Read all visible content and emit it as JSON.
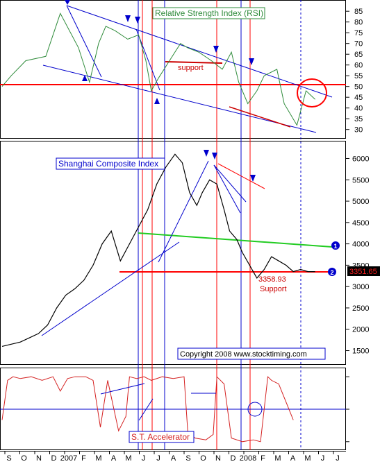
{
  "chart_data": [
    {
      "type": "line",
      "panel": "rsi",
      "title": "Relative Strength Index (RSI)",
      "y_ticks": [
        30,
        35,
        40,
        45,
        50,
        55,
        60,
        65,
        70,
        75,
        80,
        85
      ],
      "ylim": [
        27,
        87
      ],
      "reference_level": 50,
      "annotations": [
        "support"
      ],
      "series": [
        {
          "color": "#2e8b3a",
          "x": [
            0,
            0.5,
            1.3,
            2.4,
            3.2,
            4.2,
            4.8,
            5.3,
            5.7,
            6.2,
            6.9,
            7.5,
            7.9,
            8.2,
            8.6,
            9.2,
            9.8,
            10.2,
            10.8,
            11.5,
            12.1,
            12.6,
            13.0,
            13.5,
            14.0,
            14.4,
            15.1,
            15.5,
            16.2,
            16.7,
            17.2
          ],
          "y": [
            50,
            55,
            62,
            64,
            84,
            68,
            52,
            70,
            78,
            76,
            72,
            74,
            62,
            48,
            54,
            62,
            70,
            68,
            66,
            62,
            58,
            66,
            52,
            42,
            48,
            55,
            58,
            42,
            32,
            48,
            44
          ]
        }
      ]
    },
    {
      "type": "line",
      "panel": "price",
      "title": "Shanghai Composite Index",
      "y_ticks": [
        1500,
        2000,
        2500,
        3000,
        3500,
        4000,
        4500,
        5000,
        5500,
        6000
      ],
      "ylim": [
        1200,
        6300
      ],
      "last_value_label": "3351.65",
      "annotations": [
        "3358.93",
        "Support",
        "Copyright 2008 www.stocktiming.com"
      ],
      "markers": [
        "1",
        "2"
      ],
      "series": [
        {
          "color": "#000000",
          "x": [
            0,
            0.5,
            1.0,
            1.5,
            2.0,
            2.5,
            3.0,
            3.5,
            4.0,
            4.5,
            5.0,
            5.5,
            6.0,
            6.5,
            7.0,
            7.5,
            8.0,
            8.5,
            9.0,
            9.5,
            9.9,
            10.3,
            10.7,
            11.0,
            11.4,
            11.8,
            12.2,
            12.5,
            12.9,
            13.2,
            13.6,
            14.0,
            14.4,
            14.8,
            15.2,
            15.6,
            16.0,
            16.4,
            16.8,
            17.2
          ],
          "y": [
            1600,
            1650,
            1700,
            1800,
            1900,
            2100,
            2500,
            2800,
            2950,
            3150,
            3500,
            4000,
            4300,
            3600,
            4000,
            4400,
            4800,
            5400,
            5800,
            6100,
            5900,
            5200,
            4900,
            5200,
            5500,
            5400,
            4800,
            4300,
            4100,
            3800,
            3500,
            3200,
            3400,
            3700,
            3600,
            3500,
            3350,
            3400,
            3350,
            3351
          ]
        }
      ]
    },
    {
      "type": "line",
      "panel": "accelerator",
      "title": "S.T. Accelerator",
      "series": [
        {
          "color": "#d42020",
          "x": [
            0,
            0.3,
            0.6,
            1.0,
            1.6,
            2.2,
            2.8,
            3.2,
            3.6,
            4.0,
            4.6,
            5.0,
            5.4,
            5.8,
            6.4,
            6.8,
            7.0,
            7.4,
            7.8,
            8.2,
            8.8,
            9.4,
            10.0,
            10.2,
            10.6,
            11.2,
            11.6,
            11.8,
            12.2,
            12.6,
            13.2,
            13.8,
            14.2,
            14.6,
            14.8,
            15.2,
            15.6,
            16.0
          ],
          "y": [
            -0.3,
            0.8,
            0.9,
            0.85,
            0.9,
            0.8,
            0.9,
            0.5,
            0.85,
            0.9,
            0.9,
            0.8,
            -0.5,
            0.8,
            -0.6,
            -0.2,
            0.9,
            0.85,
            0.9,
            0.8,
            0.9,
            0.85,
            0.9,
            -0.6,
            -0.8,
            -0.85,
            -0.7,
            0.9,
            0.7,
            -0.8,
            -0.9,
            -0.85,
            -0.9,
            0.9,
            0.8,
            0.7,
            0.2,
            -0.3
          ]
        }
      ]
    }
  ],
  "x_axis": {
    "months": [
      "S",
      "O",
      "N",
      "D",
      "2007",
      "F",
      "M",
      "A",
      "M",
      "J",
      "J",
      "A",
      "S",
      "O",
      "N",
      "D",
      "2008",
      "F",
      "M",
      "A",
      "M",
      "J",
      "J"
    ]
  },
  "colors": {
    "rsi_line": "#2e8b3a",
    "price_line": "#000000",
    "accelerator_line": "#d42020",
    "reference_red": "#ff0000",
    "trend_blue": "#0000cc",
    "green_trend": "#22cc22"
  }
}
